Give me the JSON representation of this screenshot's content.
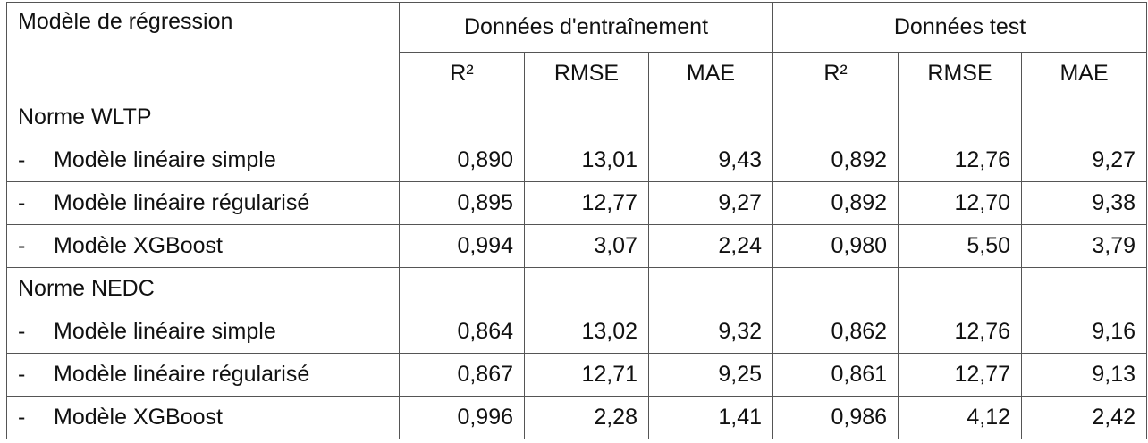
{
  "table": {
    "header": {
      "model_col": "Modèle de régression",
      "groups": [
        {
          "label": "Données d'entraînement"
        },
        {
          "label": "Données test"
        }
      ],
      "metrics": [
        "R²",
        "RMSE",
        "MAE",
        "R²",
        "RMSE",
        "MAE"
      ]
    },
    "sections": [
      {
        "title": "Norme WLTP",
        "rows": [
          {
            "dash": "-",
            "model": "Modèle linéaire simple",
            "values": [
              "0,890",
              "13,01",
              "9,43",
              "0,892",
              "12,76",
              "9,27"
            ]
          },
          {
            "dash": "-",
            "model": "Modèle linéaire régularisé",
            "values": [
              "0,895",
              "12,77",
              "9,27",
              "0,892",
              "12,70",
              "9,38"
            ]
          },
          {
            "dash": "-",
            "model": "Modèle XGBoost",
            "values": [
              "0,994",
              "3,07",
              "2,24",
              "0,980",
              "5,50",
              "3,79"
            ]
          }
        ]
      },
      {
        "title": "Norme NEDC",
        "rows": [
          {
            "dash": "-",
            "model": "Modèle linéaire simple",
            "values": [
              "0,864",
              "13,02",
              "9,32",
              "0,862",
              "12,76",
              "9,16"
            ]
          },
          {
            "dash": "-",
            "model": "Modèle linéaire régularisé",
            "values": [
              "0,867",
              "12,71",
              "9,25",
              "0,861",
              "12,77",
              "9,13"
            ]
          },
          {
            "dash": "-",
            "model": "Modèle XGBoost",
            "values": [
              "0,996",
              "2,28",
              "1,41",
              "0,986",
              "4,12",
              "2,42"
            ]
          }
        ]
      }
    ]
  }
}
